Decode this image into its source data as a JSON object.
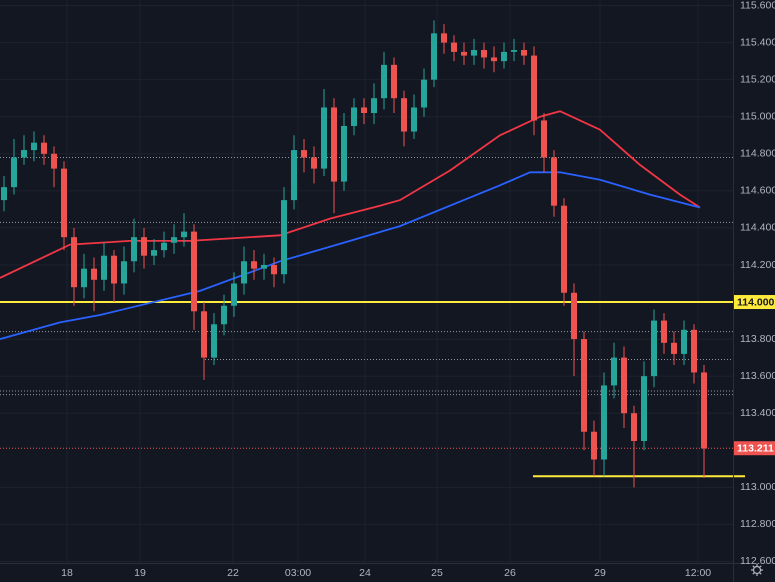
{
  "chart_data": {
    "type": "candlestick",
    "x": [
      0,
      1,
      2,
      3,
      4,
      5,
      6,
      7,
      8,
      9,
      10,
      11,
      12,
      13,
      14,
      15,
      16,
      17,
      18,
      19,
      20,
      21,
      22,
      23,
      24,
      25,
      26,
      27,
      28,
      29,
      30,
      31,
      32,
      33,
      34,
      35,
      36,
      37,
      38,
      39,
      40,
      41,
      42,
      43,
      44,
      45,
      46,
      47,
      48,
      49,
      50,
      51,
      52,
      53,
      54,
      55,
      56,
      57,
      58,
      59,
      60,
      61,
      62,
      63,
      64,
      65,
      66,
      67,
      68,
      69,
      70
    ],
    "open": [
      114.55,
      114.62,
      114.78,
      114.82,
      114.86,
      114.8,
      114.72,
      114.35,
      114.08,
      114.18,
      114.12,
      114.25,
      114.1,
      114.22,
      114.35,
      114.25,
      114.28,
      114.32,
      114.35,
      114.38,
      113.95,
      113.7,
      113.88,
      113.98,
      114.1,
      114.22,
      114.18,
      114.2,
      114.15,
      114.55,
      114.82,
      114.78,
      114.72,
      115.05,
      114.65,
      114.95,
      115.05,
      115.02,
      115.1,
      115.28,
      115.1,
      114.92,
      115.05,
      115.2,
      115.45,
      115.4,
      115.35,
      115.33,
      115.36,
      115.32,
      115.3,
      115.35,
      115.36,
      115.33,
      114.98,
      114.78,
      114.52,
      114.05,
      113.8,
      113.3,
      113.15,
      113.55,
      113.7,
      113.4,
      113.25,
      113.6,
      113.9,
      113.78,
      113.72,
      113.85,
      113.62
    ],
    "high": [
      114.68,
      114.88,
      114.9,
      114.92,
      114.9,
      114.84,
      114.76,
      114.4,
      114.26,
      114.24,
      114.32,
      114.28,
      114.3,
      114.45,
      114.4,
      114.34,
      114.38,
      114.42,
      114.48,
      114.42,
      114.0,
      113.94,
      114.04,
      114.16,
      114.3,
      114.28,
      114.26,
      114.24,
      114.62,
      114.9,
      114.88,
      114.84,
      115.15,
      115.1,
      115.02,
      115.1,
      115.1,
      115.18,
      115.35,
      115.32,
      115.14,
      115.12,
      115.26,
      115.52,
      115.5,
      115.44,
      115.4,
      115.42,
      115.4,
      115.38,
      115.4,
      115.42,
      115.4,
      115.38,
      115.02,
      114.82,
      114.56,
      114.1,
      113.84,
      113.36,
      113.62,
      113.78,
      113.76,
      113.44,
      113.68,
      113.96,
      113.94,
      113.84,
      113.9,
      113.88,
      113.66
    ],
    "low": [
      114.49,
      114.58,
      114.74,
      114.76,
      114.74,
      114.62,
      114.28,
      113.98,
      114.02,
      113.95,
      114.06,
      114.0,
      114.04,
      114.16,
      114.18,
      114.2,
      114.24,
      114.26,
      114.3,
      113.85,
      113.58,
      113.66,
      113.82,
      113.92,
      114.04,
      114.12,
      114.12,
      114.08,
      114.1,
      114.5,
      114.7,
      114.64,
      114.68,
      114.48,
      114.6,
      114.9,
      114.96,
      114.96,
      115.04,
      115.02,
      114.84,
      114.88,
      115.0,
      115.16,
      115.34,
      115.3,
      115.28,
      115.28,
      115.26,
      115.24,
      115.26,
      115.3,
      115.28,
      114.9,
      114.7,
      114.46,
      113.98,
      113.6,
      113.2,
      113.06,
      113.06,
      113.48,
      113.32,
      113.0,
      113.2,
      113.54,
      113.72,
      113.66,
      113.66,
      113.56,
      113.05
    ],
    "close": [
      114.62,
      114.78,
      114.82,
      114.86,
      114.8,
      114.72,
      114.35,
      114.08,
      114.18,
      114.12,
      114.25,
      114.1,
      114.22,
      114.35,
      114.25,
      114.28,
      114.32,
      114.35,
      114.38,
      113.95,
      113.7,
      113.88,
      113.98,
      114.1,
      114.22,
      114.18,
      114.2,
      114.15,
      114.55,
      114.82,
      114.78,
      114.72,
      115.05,
      114.65,
      114.95,
      115.05,
      115.02,
      115.1,
      115.28,
      115.1,
      114.92,
      115.05,
      115.2,
      115.45,
      115.4,
      115.35,
      115.33,
      115.36,
      115.32,
      115.3,
      115.35,
      115.36,
      115.33,
      114.98,
      114.78,
      114.52,
      114.05,
      113.8,
      113.3,
      113.15,
      113.55,
      113.7,
      113.4,
      113.25,
      113.6,
      113.9,
      113.78,
      113.72,
      113.85,
      113.62,
      113.21
    ],
    "up_color": "#26a69a",
    "down_color": "#ef5350",
    "lines": [
      {
        "color": "#f23645",
        "x": [
          -0.4,
          6.6,
          12.6,
          18.6,
          27.6,
          32.6,
          37.6,
          39.6,
          44.6,
          49.6,
          53.6,
          55.6,
          59.6,
          63.6,
          67.6,
          69.6
        ],
        "values": [
          114.13,
          114.31,
          114.33,
          114.33,
          114.36,
          114.45,
          114.52,
          114.55,
          114.71,
          114.9,
          115.0,
          115.03,
          114.93,
          114.74,
          114.58,
          114.51
        ]
      },
      {
        "color": "#2962ff",
        "x": [
          -0.4,
          5.6,
          9.6,
          19.6,
          27.6,
          34.6,
          39.6,
          44.6,
          49.6,
          52.6,
          55.6,
          59.6,
          64.6,
          69.6
        ],
        "values": [
          113.8,
          113.89,
          113.93,
          114.06,
          114.22,
          114.33,
          114.41,
          114.52,
          114.63,
          114.7,
          114.7,
          114.66,
          114.58,
          114.51
        ]
      }
    ],
    "levels": [
      {
        "value": 114.0,
        "color": "#ffeb3b",
        "style": "solid",
        "x": [
          -0.4,
          72.9
        ],
        "label": "114.000"
      },
      {
        "value": 113.06,
        "color": "#ffeb3b",
        "style": "solid",
        "x": [
          52.9,
          74.1
        ]
      },
      {
        "value": 113.211,
        "color": "#ef5350",
        "style": "dotted",
        "x": [
          -0.4,
          72.9
        ],
        "label": "113.211"
      },
      {
        "value": 114.78,
        "color": "#9598a1",
        "style": "dotted",
        "x": [
          -0.4,
          72.9
        ]
      },
      {
        "value": 114.43,
        "color": "#9598a1",
        "style": "dotted",
        "x": [
          -0.4,
          72.9
        ]
      },
      {
        "value": 113.84,
        "color": "#9598a1",
        "style": "dotted",
        "x": [
          -0.4,
          72.9
        ]
      },
      {
        "value": 113.69,
        "color": "#9598a1",
        "style": "dotted",
        "x": [
          20.1,
          72.9
        ]
      },
      {
        "value": 113.52,
        "color": "#9598a1",
        "style": "dotted",
        "x": [
          -0.4,
          72.9
        ]
      },
      {
        "value": 113.5,
        "color": "#9598a1",
        "style": "dotted",
        "x": [
          -0.4,
          72.9
        ]
      }
    ],
    "xlim": [
      -0.4,
      72.9
    ],
    "xticks": [
      {
        "value": 6.3,
        "label": "18"
      },
      {
        "value": 13.6,
        "label": "19"
      },
      {
        "value": 22.9,
        "label": "22"
      },
      {
        "value": 29.4,
        "label": "03:00"
      },
      {
        "value": 36.1,
        "label": "24"
      },
      {
        "value": 43.3,
        "label": "25"
      },
      {
        "value": 50.6,
        "label": "26"
      },
      {
        "value": 59.6,
        "label": "29"
      },
      {
        "value": 69.4,
        "label": "12:00"
      }
    ],
    "ylim": [
      112.57,
      115.63
    ],
    "yticks": [
      {
        "value": 112.6,
        "label": "112.600"
      },
      {
        "value": 112.8,
        "label": "112.800"
      },
      {
        "value": 113.0,
        "label": "113.000"
      },
      {
        "value": 113.4,
        "label": "113.400"
      },
      {
        "value": 113.6,
        "label": "113.600"
      },
      {
        "value": 113.8,
        "label": "113.800"
      },
      {
        "value": 114.2,
        "label": "114.200"
      },
      {
        "value": 114.4,
        "label": "114.400"
      },
      {
        "value": 114.6,
        "label": "114.600"
      },
      {
        "value": 114.8,
        "label": "114.800"
      },
      {
        "value": 115.0,
        "label": "115.000"
      },
      {
        "value": 115.2,
        "label": "115.200"
      },
      {
        "value": 115.4,
        "label": "115.400"
      },
      {
        "value": 115.6,
        "label": "115.600"
      }
    ],
    "grid": true
  }
}
